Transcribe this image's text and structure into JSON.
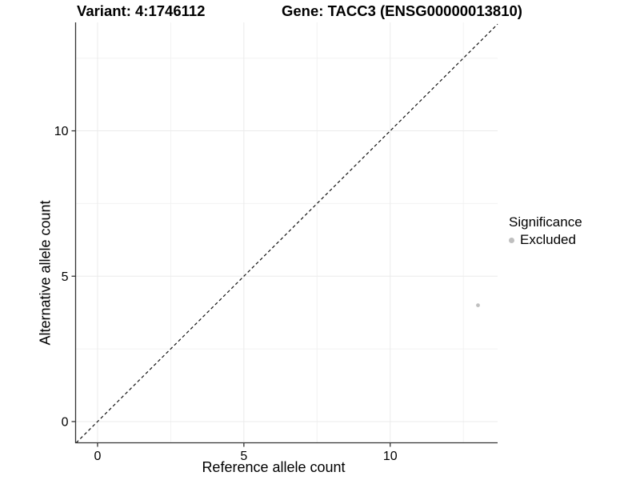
{
  "chart_data": {
    "type": "scatter",
    "title_variant": "Variant: 4:1746112",
    "title_gene": "Gene: TACC3 (ENSG00000013810)",
    "xlabel": "Reference allele count",
    "ylabel": "Alternative allele count",
    "x_ticks": [
      0,
      5,
      10
    ],
    "y_ticks": [
      0,
      5,
      10
    ],
    "minor_ticks": [
      2.5,
      7.5,
      12.5
    ],
    "xlim": [
      -0.75,
      13.67
    ],
    "ylim": [
      -0.73,
      13.73
    ],
    "grid": true,
    "points": [
      {
        "x": 13,
        "y": 4,
        "series": "Excluded"
      }
    ],
    "reference_line": {
      "slope": 1,
      "intercept": 0,
      "style": "dashed"
    },
    "legend": {
      "title": "Significance",
      "position": "right",
      "entries": [
        {
          "label": "Excluded",
          "color": "#bfbfbf",
          "marker": "circle"
        }
      ]
    },
    "colors": {
      "point": "#bfbfbf",
      "grid_major": "#ebebeb",
      "grid_minor": "#f2f2f2",
      "axis": "#333333",
      "dashed_line": "#111111",
      "background": "#ffffff",
      "text": "#000000"
    }
  }
}
